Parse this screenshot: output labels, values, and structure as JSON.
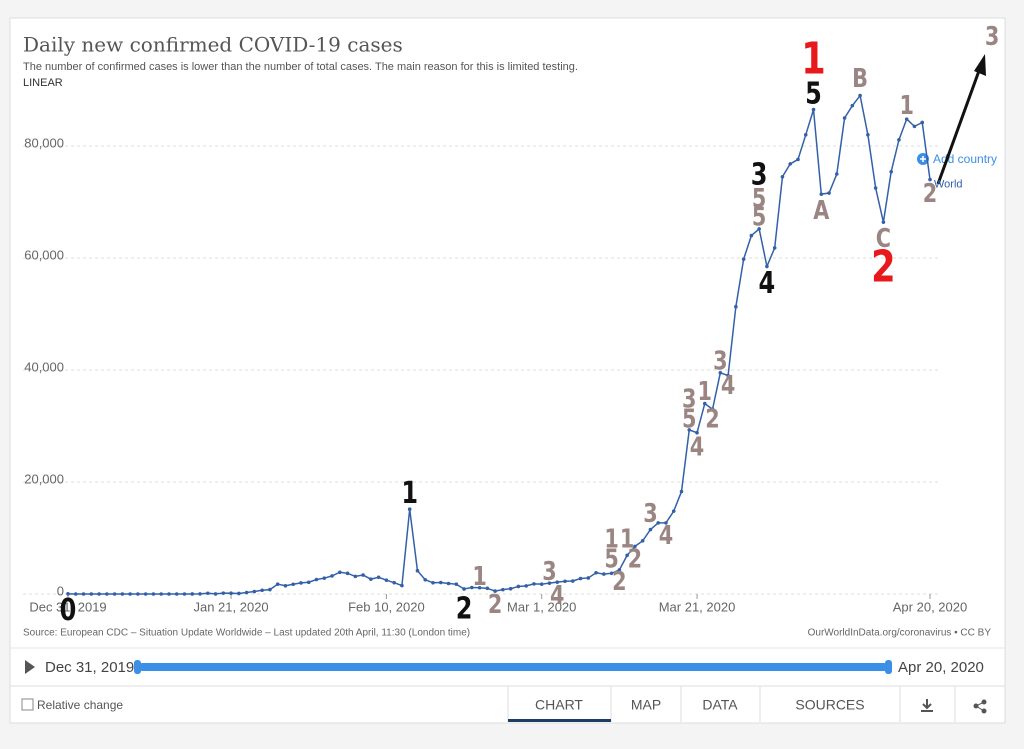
{
  "chart_data": {
    "type": "line",
    "title": "Daily new confirmed COVID-19 cases",
    "subtitle": "The number of confirmed cases is lower than the number of total cases. The main reason for this is limited testing.",
    "scale": "LINEAR",
    "source": "Source: European CDC – Situation Update Worldwide – Last updated 20th April, 11:30 (London time)",
    "credit": "OurWorldInData.org/coronavirus • CC BY",
    "add_country": "Add country",
    "grid": true,
    "xlim": [
      "2019-12-31",
      "2020-04-20"
    ],
    "xticks": [
      {
        "value": "2019-12-31",
        "label": "Dec 31, 2019"
      },
      {
        "value": "2020-01-21",
        "label": "Jan 21, 2020"
      },
      {
        "value": "2020-02-10",
        "label": "Feb 10, 2020"
      },
      {
        "value": "2020-03-01",
        "label": "Mar 1, 2020"
      },
      {
        "value": "2020-03-21",
        "label": "Mar 21, 2020"
      },
      {
        "value": "2020-04-20",
        "label": "Apr 20, 2020"
      }
    ],
    "ylim": [
      0,
      90000
    ],
    "yticks": [
      0,
      {
        "value": 20000,
        "label": "20,000"
      },
      {
        "value": 40000,
        "label": "40,000"
      },
      {
        "value": 60000,
        "label": "60,000"
      },
      {
        "value": 80000,
        "label": "80,000"
      }
    ],
    "x": [
      "2019-12-31",
      "2020-01-01",
      "2020-01-02",
      "2020-01-03",
      "2020-01-04",
      "2020-01-05",
      "2020-01-06",
      "2020-01-07",
      "2020-01-08",
      "2020-01-09",
      "2020-01-10",
      "2020-01-11",
      "2020-01-12",
      "2020-01-13",
      "2020-01-14",
      "2020-01-15",
      "2020-01-16",
      "2020-01-17",
      "2020-01-18",
      "2020-01-19",
      "2020-01-20",
      "2020-01-21",
      "2020-01-22",
      "2020-01-23",
      "2020-01-24",
      "2020-01-25",
      "2020-01-26",
      "2020-01-27",
      "2020-01-28",
      "2020-01-29",
      "2020-01-30",
      "2020-01-31",
      "2020-02-01",
      "2020-02-02",
      "2020-02-03",
      "2020-02-04",
      "2020-02-05",
      "2020-02-06",
      "2020-02-07",
      "2020-02-08",
      "2020-02-09",
      "2020-02-10",
      "2020-02-11",
      "2020-02-12",
      "2020-02-13",
      "2020-02-14",
      "2020-02-15",
      "2020-02-16",
      "2020-02-17",
      "2020-02-18",
      "2020-02-19",
      "2020-02-20",
      "2020-02-21",
      "2020-02-22",
      "2020-02-23",
      "2020-02-24",
      "2020-02-25",
      "2020-02-26",
      "2020-02-27",
      "2020-02-28",
      "2020-02-29",
      "2020-03-01",
      "2020-03-02",
      "2020-03-03",
      "2020-03-04",
      "2020-03-05",
      "2020-03-06",
      "2020-03-07",
      "2020-03-08",
      "2020-03-09",
      "2020-03-10",
      "2020-03-11",
      "2020-03-12",
      "2020-03-13",
      "2020-03-14",
      "2020-03-15",
      "2020-03-16",
      "2020-03-17",
      "2020-03-18",
      "2020-03-19",
      "2020-03-20",
      "2020-03-21",
      "2020-03-22",
      "2020-03-23",
      "2020-03-24",
      "2020-03-25",
      "2020-03-26",
      "2020-03-27",
      "2020-03-28",
      "2020-03-29",
      "2020-03-30",
      "2020-03-31",
      "2020-04-01",
      "2020-04-02",
      "2020-04-03",
      "2020-04-04",
      "2020-04-05",
      "2020-04-06",
      "2020-04-07",
      "2020-04-08",
      "2020-04-09",
      "2020-04-10",
      "2020-04-11",
      "2020-04-12",
      "2020-04-13",
      "2020-04-14",
      "2020-04-15",
      "2020-04-16",
      "2020-04-17",
      "2020-04-18",
      "2020-04-19",
      "2020-04-20"
    ],
    "series": [
      {
        "name": "World",
        "color": "#3360a9",
        "values": [
          27,
          0,
          0,
          0,
          0,
          0,
          0,
          0,
          0,
          0,
          0,
          0,
          0,
          0,
          1,
          0,
          4,
          17,
          136,
          19,
          151,
          140,
          97,
          259,
          441,
          665,
          787,
          1753,
          1466,
          1740,
          1980,
          2099,
          2589,
          2825,
          3235,
          3884,
          3694,
          3143,
          3385,
          2652,
          2984,
          2473,
          2022,
          1500,
          15141,
          4156,
          2538,
          2007,
          2055,
          1877,
          1753,
          900,
          1159,
          1115,
          1010,
          516,
          782,
          940,
          1350,
          1451,
          1800,
          1753,
          1939,
          2113,
          2279,
          2317,
          2760,
          2867,
          3794,
          3556,
          3700,
          4300,
          6900,
          8500,
          9500,
          11500,
          12700,
          12700,
          14800,
          18300,
          29300,
          28800,
          34000,
          33000,
          39500,
          39000,
          51300,
          59800,
          64000,
          65200,
          58500,
          61800,
          74500,
          76800,
          77600,
          82000,
          86500,
          71400,
          71600,
          75000,
          85000,
          87200,
          89000,
          82000,
          72500,
          66400,
          75400,
          81100,
          84800,
          83500,
          84200,
          74000
        ]
      }
    ],
    "annotations": [
      {
        "text": "0",
        "x": "2019-12-31",
        "y": -3200,
        "color": "#111111"
      },
      {
        "text": "1",
        "x": "2020-02-13",
        "y": 17700,
        "color": "#111111"
      },
      {
        "text": "2",
        "x": "2020-02-20",
        "y": -2900,
        "color": "#111111"
      },
      {
        "text": "1",
        "x": "2020-02-22",
        "y": 2900,
        "color": "#9a8583"
      },
      {
        "text": "2",
        "x": "2020-02-24",
        "y": -2100,
        "color": "#9a8583"
      },
      {
        "text": "3",
        "x": "2020-03-02",
        "y": 3750,
        "color": "#9a8583"
      },
      {
        "text": "4",
        "x": "2020-03-03",
        "y": -500,
        "color": "#9a8583"
      },
      {
        "text": "1",
        "x": "2020-03-10",
        "y": 9600,
        "color": "#9a8583"
      },
      {
        "text": "5",
        "x": "2020-03-10",
        "y": 6000,
        "color": "#9a8583"
      },
      {
        "text": "2",
        "x": "2020-03-11",
        "y": 2000,
        "color": "#9a8583"
      },
      {
        "text": "1",
        "x": "2020-03-12",
        "y": 9600,
        "color": "#9a8583"
      },
      {
        "text": "2",
        "x": "2020-03-13",
        "y": 6000,
        "color": "#9a8583"
      },
      {
        "text": "3",
        "x": "2020-03-15",
        "y": 14100,
        "color": "#9a8583"
      },
      {
        "text": "4",
        "x": "2020-03-17",
        "y": 10200,
        "color": "#9a8583"
      },
      {
        "text": "3",
        "x": "2020-03-20",
        "y": 34600,
        "color": "#9a8583"
      },
      {
        "text": "5",
        "x": "2020-03-20",
        "y": 31000,
        "color": "#9a8583"
      },
      {
        "text": "4",
        "x": "2020-03-21",
        "y": 26000,
        "color": "#9a8583"
      },
      {
        "text": "1",
        "x": "2020-03-22",
        "y": 35900,
        "color": "#9a8583"
      },
      {
        "text": "2",
        "x": "2020-03-23",
        "y": 31000,
        "color": "#9a8583"
      },
      {
        "text": "3",
        "x": "2020-03-24",
        "y": 41400,
        "color": "#9a8583"
      },
      {
        "text": "4",
        "x": "2020-03-25",
        "y": 37000,
        "color": "#9a8583"
      },
      {
        "text": "3",
        "x": "2020-03-29",
        "y": 74600,
        "color": "#111111"
      },
      {
        "text": "5",
        "x": "2020-03-29",
        "y": 70400,
        "color": "#9a8583"
      },
      {
        "text": "5",
        "x": "2020-03-29",
        "y": 67100,
        "color": "#9a8583"
      },
      {
        "text": "4",
        "x": "2020-03-30",
        "y": 55200,
        "color": "#111111"
      },
      {
        "text": "1",
        "x": "2020-04-05",
        "y": 95000,
        "color": "#e8191c"
      },
      {
        "text": "5",
        "x": "2020-04-05",
        "y": 89100,
        "color": "#111111"
      },
      {
        "text": "A",
        "x": "2020-04-06",
        "y": 68200,
        "color": "#9a8583"
      },
      {
        "text": "B",
        "x": "2020-04-11",
        "y": 91800,
        "color": "#9a8583"
      },
      {
        "text": "C",
        "x": "2020-04-14",
        "y": 63200,
        "color": "#9a8583"
      },
      {
        "text": "2",
        "x": "2020-04-14",
        "y": 57900,
        "color": "#e8191c"
      },
      {
        "text": "1",
        "x": "2020-04-17",
        "y": 87000,
        "color": "#9a8583"
      },
      {
        "text": "2",
        "x": "2020-04-20",
        "y": 71300,
        "color": "#9a8583"
      },
      {
        "text": "3",
        "x": "2020-04-28",
        "y": 99300,
        "color": "#9a8583"
      }
    ]
  },
  "controls": {
    "start": "Dec 31, 2019",
    "end": "Apr 20, 2020",
    "relative": "Relative change",
    "tabs": [
      "CHART",
      "MAP",
      "DATA",
      "SOURCES"
    ]
  }
}
